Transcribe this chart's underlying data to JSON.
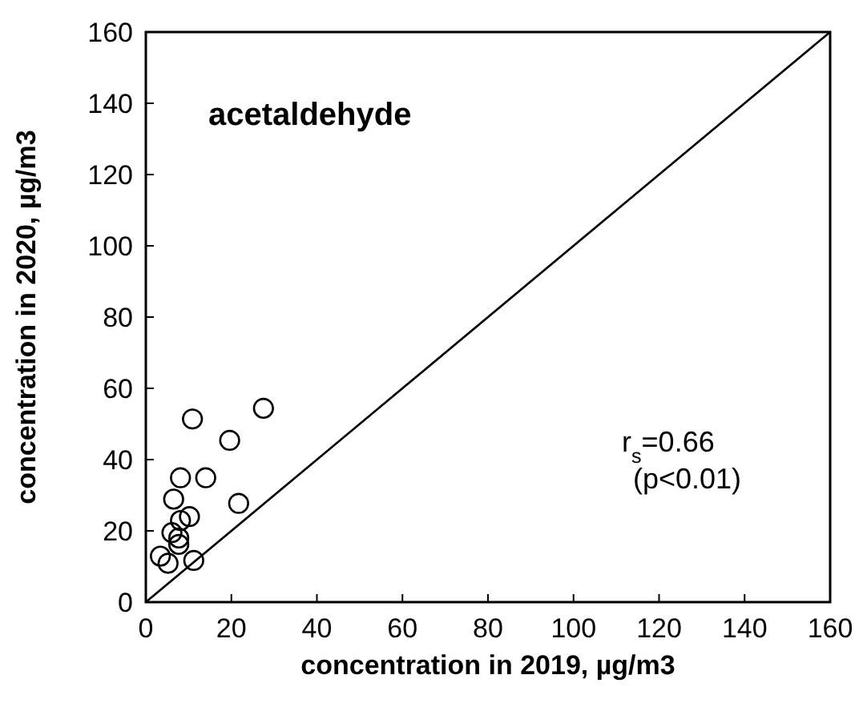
{
  "chart_data": {
    "type": "scatter",
    "xlabel": "concentration in 2019, µg/m3",
    "ylabel": "concentration in 2020, µg/m3",
    "annotations": [
      "acetaldehyde",
      "r$_{s}$=0.66",
      "(p<0.01)"
    ],
    "xlim": [
      0,
      160
    ],
    "ylim": [
      0,
      160
    ],
    "xticks": [
      0,
      20,
      40,
      60,
      80,
      100,
      120,
      140,
      160
    ],
    "yticks": [
      0,
      20,
      40,
      60,
      80,
      100,
      120,
      140,
      160
    ],
    "grid": false,
    "marker": "circle",
    "series": [
      {
        "color": "#000000",
        "x": [
          10.9,
          27.5,
          19.6,
          8.1,
          14.0,
          6.5,
          21.7,
          10.2,
          8.1,
          6.1,
          7.7,
          7.7,
          3.4,
          5.2,
          11.2
        ],
        "values": [
          51.4,
          54.4,
          45.4,
          34.9,
          34.9,
          28.9,
          27.7,
          24.0,
          22.9,
          19.5,
          18.0,
          16.2,
          12.9,
          10.9,
          11.7
        ]
      },
      {
        "type": "line",
        "color": "#000000",
        "x": [
          0,
          160
        ],
        "values": [
          0,
          160
        ],
        "line_style": "solid",
        "marker": "none"
      }
    ]
  }
}
